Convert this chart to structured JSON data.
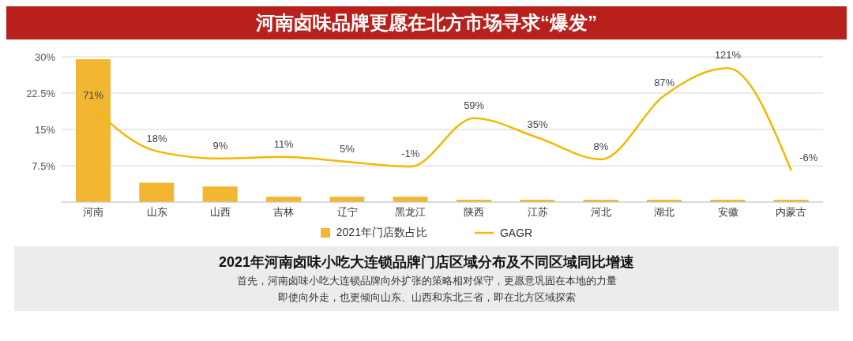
{
  "chart_data": {
    "type": "bar",
    "title": "河南卤味品牌更愿在北方市场寻求“爆发”",
    "subtitle": "2021年河南卤味小吃大连锁品牌门店区域分布及不同区域同比增速",
    "annotations": [
      "首先，河南卤味小吃大连锁品牌向外扩张的策略相对保守，更愿意巩固在本地的力量",
      "即使向外走，也更倾向山东、山西和东北三省，即在北方区域探索"
    ],
    "categories": [
      "河南",
      "山东",
      "山西",
      "吉林",
      "辽宁",
      "黑龙江",
      "陕西",
      "江苏",
      "河北",
      "湖北",
      "安徽",
      "内蒙古"
    ],
    "series": [
      {
        "name": "2021年门店数占比",
        "color": "#f2b632",
        "values": [
          29.5,
          4,
          3.2,
          1.1,
          1.1,
          1.1,
          0.5,
          0.5,
          0.5,
          0.5,
          0.5,
          0.5
        ]
      },
      {
        "name": "GAGR",
        "type": "line",
        "axis": "y2",
        "color": "#f5b800",
        "values": [
          71,
          18,
          9,
          11,
          5,
          -1,
          59,
          35,
          8,
          87,
          121,
          -6
        ],
        "value_labels": [
          "71%",
          "18%",
          "9%",
          "11%",
          "5%",
          "-1%",
          "59%",
          "35%",
          "8%",
          "87%",
          "121%",
          "-6%"
        ]
      }
    ],
    "ylim": [
      0,
      30
    ],
    "yticks": [
      {
        "value": 7.5,
        "label": "7.5%"
      },
      {
        "value": 15,
        "label": "15%"
      },
      {
        "value": 22.5,
        "label": "22.5%"
      },
      {
        "value": 30,
        "label": "30%"
      }
    ],
    "grid": "y",
    "legend": "bottom",
    "marker": "none"
  }
}
